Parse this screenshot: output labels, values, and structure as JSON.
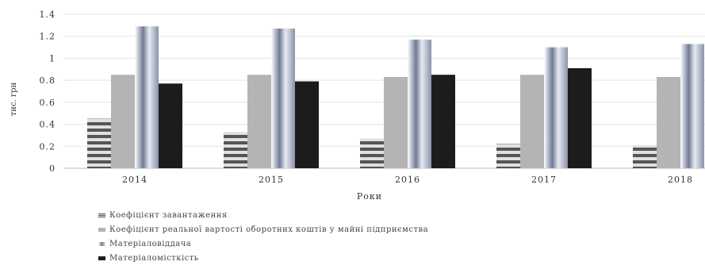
{
  "chart_data": {
    "type": "bar",
    "categories": [
      "2014",
      "2015",
      "2016",
      "2017",
      "2018"
    ],
    "y_ticks": [
      "0",
      "0.2",
      "0.4",
      "0.6",
      "0.8",
      "1",
      "1.2",
      "1.4"
    ],
    "ylim": [
      0,
      1.4
    ],
    "ylabel": "тис. грн",
    "xlabel": "Роки",
    "grid": true,
    "legend_position": "bottom",
    "series": [
      {
        "name": "Коефіцієнт завантаження",
        "values": [
          0.45,
          0.33,
          0.27,
          0.22,
          0.21
        ],
        "pattern": "horizontal-stripes",
        "color": "#555555"
      },
      {
        "name": "Коефіцієнт реальної вартості оборотних коштів у майні підприємства",
        "values": [
          0.85,
          0.85,
          0.83,
          0.85,
          0.83
        ],
        "pattern": "light-grey",
        "color": "#b4b4b4"
      },
      {
        "name": "Матеріаловіддача",
        "values": [
          1.29,
          1.27,
          1.17,
          1.1,
          1.13
        ],
        "pattern": "metallic-gradient",
        "color": "#8a92a8"
      },
      {
        "name": "Матеріаломісткість",
        "values": [
          0.77,
          0.79,
          0.85,
          0.91,
          null
        ],
        "pattern": "solid-black",
        "color": "#1c1c1c"
      }
    ]
  }
}
